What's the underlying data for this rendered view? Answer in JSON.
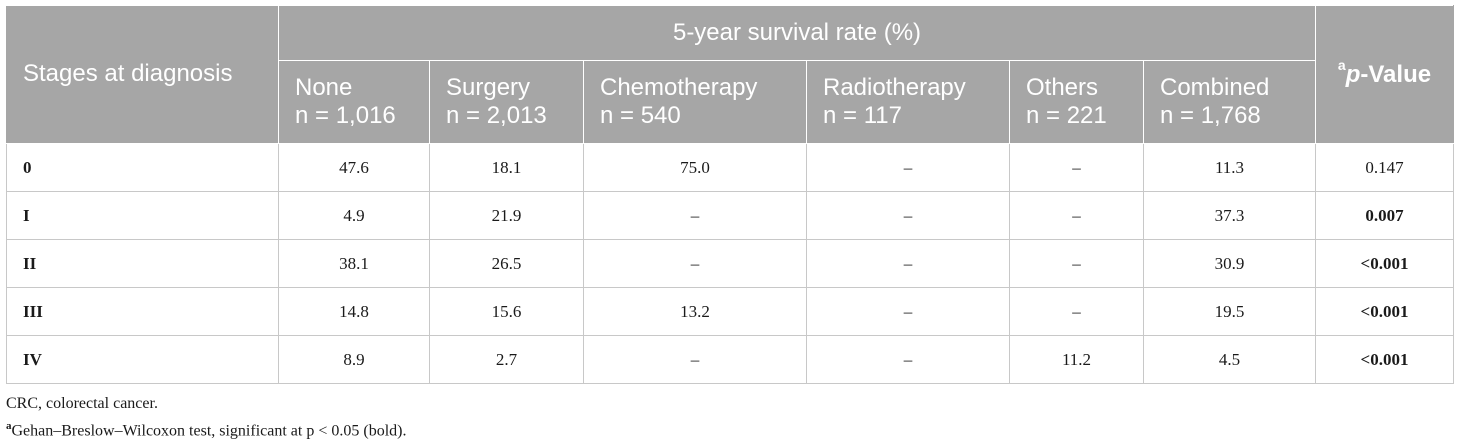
{
  "table": {
    "stage_header": "Stages at diagnosis",
    "group_header": "5-year survival rate (%)",
    "pvalue_header": {
      "sup": "a",
      "p": "p",
      "rest": "-Value"
    },
    "columns": [
      {
        "name": "None",
        "n": "n = 1,016"
      },
      {
        "name": "Surgery",
        "n": "n = 2,013"
      },
      {
        "name": "Chemotherapy",
        "n": "n = 540"
      },
      {
        "name": "Radiotherapy",
        "n": "n = 117"
      },
      {
        "name": "Others",
        "n": "n = 221"
      },
      {
        "name": "Combined",
        "n": "n = 1,768"
      }
    ],
    "rows": [
      {
        "stage": "0",
        "cells": [
          "47.6",
          "18.1",
          "75.0",
          "–",
          "–",
          "11.3"
        ],
        "pvalue": "0.147",
        "significant": false
      },
      {
        "stage": "I",
        "cells": [
          "4.9",
          "21.9",
          "–",
          "–",
          "–",
          "37.3"
        ],
        "pvalue": "0.007",
        "significant": true
      },
      {
        "stage": "II",
        "cells": [
          "38.1",
          "26.5",
          "–",
          "–",
          "–",
          "30.9"
        ],
        "pvalue": "<0.001",
        "significant": true
      },
      {
        "stage": "III",
        "cells": [
          "14.8",
          "15.6",
          "13.2",
          "–",
          "–",
          "19.5"
        ],
        "pvalue": "<0.001",
        "significant": true
      },
      {
        "stage": "IV",
        "cells": [
          "8.9",
          "2.7",
          "–",
          "–",
          "11.2",
          "4.5"
        ],
        "pvalue": "<0.001",
        "significant": true
      }
    ]
  },
  "footnotes": {
    "abbrev": "CRC, colorectal cancer.",
    "test_sup": "a",
    "test": "Gehan–Breslow–Wilcoxon test, significant at p < 0.05 (bold)."
  },
  "colors": {
    "header_bg": "#a6a6a6",
    "header_text": "#ffffff",
    "grid": "#c8c8c8"
  }
}
